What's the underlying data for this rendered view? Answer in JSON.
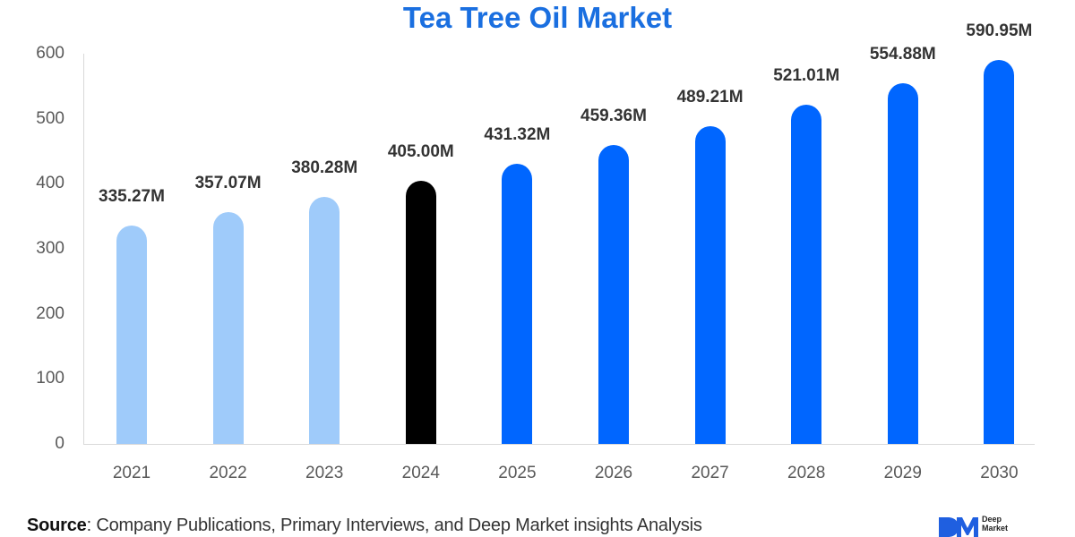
{
  "title": "Tea Tree Oil Market",
  "colors": {
    "title": "#1a6fe0",
    "historical": "#9fcbfa",
    "base_year": "#000000",
    "forecast": "#0066ff"
  },
  "chart_data": {
    "type": "bar",
    "title": "Tea Tree Oil Market",
    "xlabel": "",
    "ylabel": "",
    "categories": [
      "2021",
      "2022",
      "2023",
      "2024",
      "2025",
      "2026",
      "2027",
      "2028",
      "2029",
      "2030"
    ],
    "values": [
      335.27,
      357.07,
      380.28,
      405.0,
      431.32,
      459.36,
      489.21,
      521.01,
      554.88,
      590.95
    ],
    "data_labels": [
      "335.27M",
      "357.07M",
      "380.28M",
      "405.00M",
      "431.32M",
      "459.36M",
      "489.21M",
      "521.01M",
      "554.88M",
      "590.95M"
    ],
    "bar_styles": [
      "historical",
      "historical",
      "historical",
      "base_year",
      "forecast",
      "forecast",
      "forecast",
      "forecast",
      "forecast",
      "forecast"
    ],
    "ylim": [
      0,
      600
    ],
    "yticks": [
      "0",
      "100",
      "200",
      "300",
      "400",
      "500",
      "600"
    ],
    "grid": false,
    "legend": "none",
    "units": "USD Million"
  },
  "footer": {
    "source_label": "Source",
    "source_text": ": Company Publications, Primary Interviews, and Deep Market insights Analysis",
    "logo_line1": "Deep",
    "logo_line2": "Market"
  }
}
